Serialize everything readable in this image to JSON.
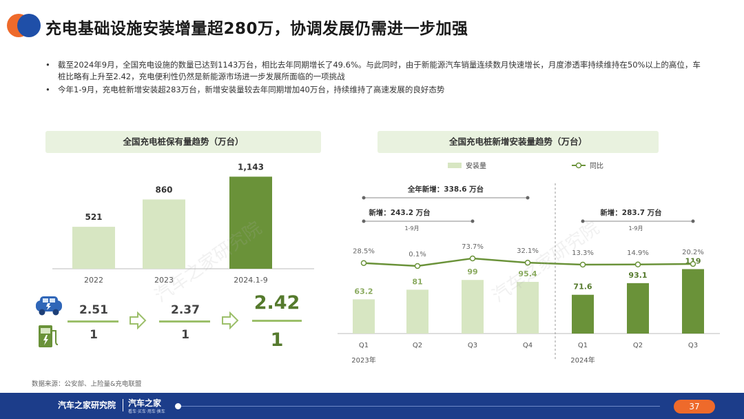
{
  "title": "充电基础设施安装增量超280万，协调发展仍需进一步加强",
  "bullets": [
    "截至2024年9月，全国充电设施的数量已达到1143万台，相比去年同期增长了49.6%。与此同时，由于新能源汽车销量连续数月快速增长，月度渗透率持续维持在50%以上的高位，车桩比略有上升至2.42，充电便利性仍然是新能源市场进一步发展所面临的一项挑战",
    "今年1-9月，充电桩新增安装超283万台，新增安装量较去年同期增加40万台，持续维持了高速发展的良好态势"
  ],
  "left_panel_title": "全国充电桩保有量趋势（万台）",
  "right_panel_title": "全国充电桩新增安装量趋势（万台）",
  "ratios": [
    {
      "num": "2.51",
      "den": "1"
    },
    {
      "num": "2.37",
      "den": "1"
    },
    {
      "num": "2.42",
      "den": "1"
    }
  ],
  "right_brackets": {
    "full_year": "全年新增：338.6 万台",
    "h2023": "新增：243.2 万台",
    "h2023_sub": "1-9月",
    "h2024": "新增：283.7 万台",
    "h2024_sub": "1-9月"
  },
  "source": "数据来源：公安部、上险量&充电联盟",
  "footer": {
    "page": "37",
    "brand1": "汽车之家研究院",
    "brand2": "汽车之家",
    "brand2_sub": "看车·买车·用车·换车"
  },
  "colors": {
    "light_green": "#d7e6c2",
    "dark_green": "#6a9239",
    "line_green": "#6a9239",
    "footer_blue": "#1c3d8a",
    "logo_orange": "#ee6a2b",
    "logo_blue": "#1f4fa8"
  },
  "chart_data": [
    {
      "type": "bar",
      "title": "全国充电桩保有量趋势（万台）",
      "categories": [
        "2022",
        "2023",
        "2024.1-9"
      ],
      "values": [
        521,
        860,
        1143
      ],
      "labels": [
        "521",
        "860",
        "1,143"
      ],
      "ylim": [
        0,
        1300
      ]
    },
    {
      "type": "bar+line",
      "title": "全国充电桩新增安装量趋势（万台）",
      "categories": [
        "Q1",
        "Q2",
        "Q3",
        "Q4",
        "Q1",
        "Q2",
        "Q3"
      ],
      "group_labels": [
        "2023年",
        "2024年"
      ],
      "series": [
        {
          "name": "安装量",
          "type": "bar",
          "values": [
            63.2,
            81,
            99,
            95.4,
            71.6,
            93.1,
            119
          ],
          "labels": [
            "63.2",
            "81",
            "99",
            "95.4",
            "71.6",
            "93.1",
            "119"
          ]
        },
        {
          "name": "同比",
          "type": "line",
          "values": [
            28.5,
            0.1,
            73.7,
            32.1,
            13.3,
            14.9,
            20.2
          ],
          "labels": [
            "28.5%",
            "0.1%",
            "73.7%",
            "32.1%",
            "13.3%",
            "14.9%",
            "20.2%"
          ]
        }
      ],
      "legend": [
        "安装量",
        "同比"
      ],
      "ylim": [
        0,
        140
      ]
    }
  ]
}
